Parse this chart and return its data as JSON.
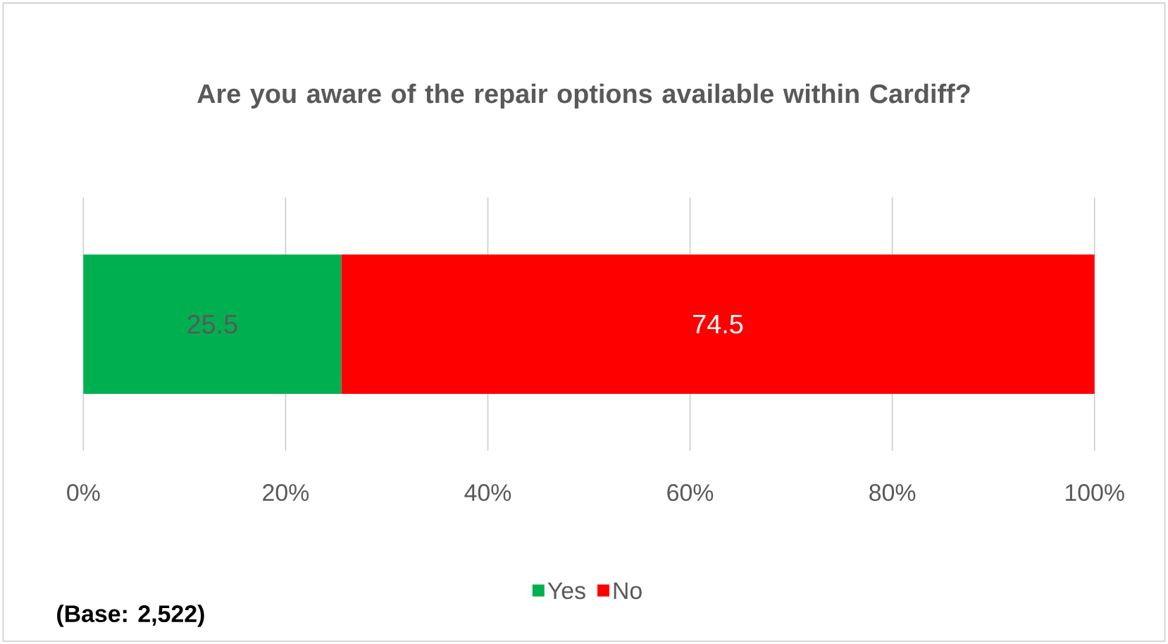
{
  "chart_data": {
    "type": "bar",
    "orientation": "horizontal",
    "stacked": true,
    "title": "Are you aware of the repair options available within Cardiff?",
    "categories": [
      null
    ],
    "series": [
      {
        "name": "Yes",
        "color": "#00b050",
        "values": [
          25.5
        ]
      },
      {
        "name": "No",
        "color": "#ff0000",
        "values": [
          74.5
        ]
      }
    ],
    "xlim": [
      0,
      100
    ],
    "xticks": [
      {
        "value": 0,
        "label": "0%"
      },
      {
        "value": 20,
        "label": "20%"
      },
      {
        "value": 40,
        "label": "40%"
      },
      {
        "value": 60,
        "label": "60%"
      },
      {
        "value": 80,
        "label": "80%"
      },
      {
        "value": 100,
        "label": "100%"
      }
    ],
    "grid": "x",
    "legend": "bottom",
    "data_labels": true,
    "annotations": [
      "(Base: 2,522)"
    ]
  }
}
